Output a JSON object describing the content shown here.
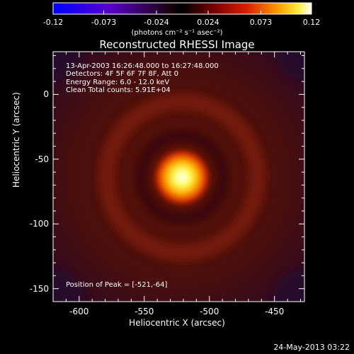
{
  "title": "Reconstructed RHESSI Image",
  "colorbar": {
    "tick_labels": [
      "-0.12",
      "-0.073",
      "-0.024",
      "0.024",
      "0.073",
      "0.12"
    ],
    "tick_values": [
      -0.12,
      -0.073,
      -0.024,
      0.024,
      0.073,
      0.12
    ],
    "range": [
      -0.12,
      0.12
    ],
    "units": "(photons cm⁻² s⁻¹ asec⁻²)"
  },
  "info": {
    "time": "13-Apr-2003 16:26:48.000 to 16:27:48.000",
    "detectors": "Detectors: 4F 5F 6F 7F 8F, Att 0",
    "energy": "Energy Range: 6.0 - 12.0 keV",
    "clean": "Clean    Total counts: 5.91E+04",
    "peak": "Position of Peak = [-521,-64]"
  },
  "timestamp": "24-May-2013 03:22",
  "chart_data": {
    "type": "heatmap",
    "title": "Reconstructed RHESSI Image",
    "xlabel": "Heliocentric X (arcsec)",
    "ylabel": "Heliocentric Y (arcsec)",
    "xlim": [
      -620,
      -427
    ],
    "ylim": [
      -160,
      33
    ],
    "xticks": [
      -600,
      -550,
      -500,
      -450
    ],
    "xtick_labels": [
      "-600",
      "-550",
      "-500",
      "-450"
    ],
    "yticks": [
      0,
      -50,
      -100,
      -150
    ],
    "ytick_labels": [
      "0",
      "-50",
      "-100",
      "-150"
    ],
    "colorbar_range": [
      -0.12,
      0.12
    ],
    "colormap": "heat (blue-purple-black-red-yellow-white)",
    "peak": {
      "x": -521,
      "y": -64,
      "value": 0.12
    },
    "ring": {
      "center": [
        -521,
        -64
      ],
      "radius": 58,
      "value": 0.024
    },
    "background_value": 0.01
  }
}
